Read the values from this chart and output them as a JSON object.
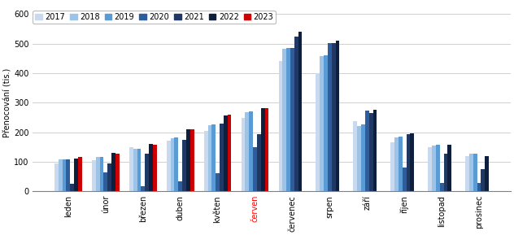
{
  "months": [
    "leden",
    "únor",
    "březen",
    "duben",
    "květen",
    "červen",
    "červenec",
    "srpen",
    "září",
    "říjen",
    "listopad",
    "prosinec"
  ],
  "years": [
    "2017",
    "2018",
    "2019",
    "2020",
    "2021",
    "2022",
    "2023"
  ],
  "colors": [
    "#c9daf0",
    "#9dc3e6",
    "#5b9bd5",
    "#2e5d9e",
    "#1f3864",
    "#0d1f3c",
    "#cc0000"
  ],
  "data": {
    "2017": [
      93,
      105,
      148,
      170,
      205,
      248,
      440,
      400,
      238,
      165,
      148,
      118
    ],
    "2018": [
      107,
      115,
      143,
      180,
      223,
      268,
      483,
      457,
      222,
      183,
      155,
      127
    ],
    "2019": [
      108,
      117,
      145,
      182,
      225,
      270,
      485,
      460,
      225,
      185,
      157,
      128
    ],
    "2020": [
      108,
      65,
      18,
      35,
      62,
      148,
      485,
      503,
      272,
      80,
      27,
      27
    ],
    "2021": [
      25,
      95,
      128,
      175,
      228,
      193,
      525,
      501,
      265,
      193,
      128,
      75
    ],
    "2022": [
      112,
      130,
      160,
      210,
      258,
      282,
      540,
      511,
      275,
      195,
      158,
      120
    ],
    "2023": [
      115,
      128,
      158,
      210,
      260,
      282,
      null,
      null,
      null,
      null,
      null,
      null
    ]
  },
  "ylabel": "Přenocování (tis.)",
  "ylim": [
    0,
    600
  ],
  "yticks": [
    0,
    100,
    200,
    300,
    400,
    500,
    600
  ],
  "grid_color": "#d0d0d0",
  "tick_fontsize": 7,
  "legend_fontsize": 7,
  "bar_width": 0.105
}
